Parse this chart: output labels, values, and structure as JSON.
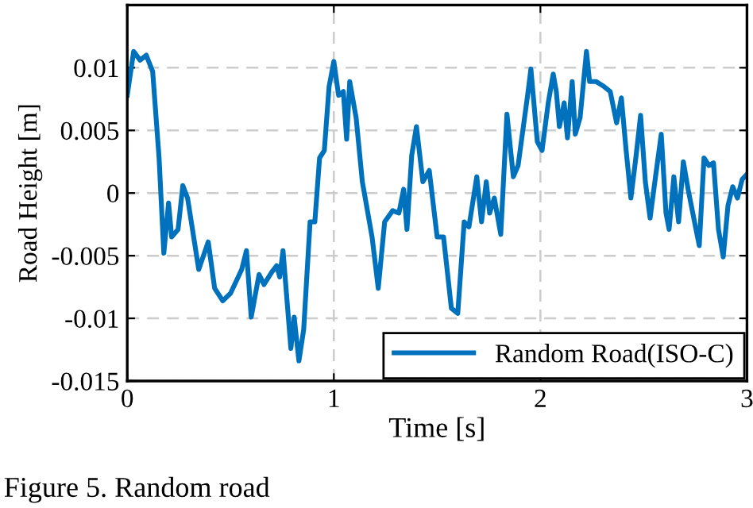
{
  "chart_data": {
    "type": "line",
    "xlabel": "Time [s]",
    "ylabel": "Road Height [m]",
    "annotations": [
      "Figure 5. Random road"
    ],
    "xlim": [
      0,
      3
    ],
    "xticks": [
      0,
      1,
      2,
      3
    ],
    "ylim": [
      -0.015,
      0.015
    ],
    "yticks": [
      {
        "value": -0.015,
        "label": "-0.015"
      },
      {
        "value": -0.01,
        "label": "-0.01"
      },
      {
        "value": -0.005,
        "label": "-0.005"
      },
      {
        "value": 0,
        "label": "0"
      },
      {
        "value": 0.005,
        "label": "0.005"
      },
      {
        "value": 0.01,
        "label": "0.01"
      }
    ],
    "grid": true,
    "legend": "bottom right",
    "line_style": "solid",
    "marker": "none",
    "series": [
      {
        "name": "Random Road(ISO-C)",
        "color": "#0072bd",
        "x": [
          0,
          0.031,
          0.062,
          0.092,
          0.123,
          0.154,
          0.177,
          0.2,
          0.215,
          0.246,
          0.269,
          0.292,
          0.346,
          0.392,
          0.423,
          0.462,
          0.5,
          0.554,
          0.577,
          0.6,
          0.638,
          0.662,
          0.7,
          0.723,
          0.738,
          0.754,
          0.792,
          0.808,
          0.831,
          0.854,
          0.885,
          0.908,
          0.931,
          0.954,
          0.977,
          1.0,
          1.023,
          1.046,
          1.062,
          1.077,
          1.108,
          1.138,
          1.185,
          1.215,
          1.246,
          1.285,
          1.315,
          1.338,
          1.354,
          1.377,
          1.4,
          1.431,
          1.462,
          1.5,
          1.531,
          1.569,
          1.6,
          1.631,
          1.654,
          1.692,
          1.715,
          1.738,
          1.754,
          1.777,
          1.808,
          1.838,
          1.869,
          1.892,
          1.938,
          1.954,
          1.985,
          2.008,
          2.038,
          2.062,
          2.077,
          2.092,
          2.115,
          2.131,
          2.154,
          2.169,
          2.192,
          2.223,
          2.238,
          2.269,
          2.308,
          2.338,
          2.369,
          2.392,
          2.415,
          2.438,
          2.462,
          2.485,
          2.508,
          2.531,
          2.554,
          2.585,
          2.608,
          2.623,
          2.646,
          2.669,
          2.692,
          2.715,
          2.746,
          2.769,
          2.792,
          2.815,
          2.838,
          2.862,
          2.885,
          2.908,
          2.931,
          2.954,
          2.977,
          3.0
        ],
        "values": [
          0.0078,
          0.0113,
          0.0106,
          0.011,
          0.0097,
          0.0028,
          -0.0048,
          -0.0008,
          -0.0035,
          -0.0029,
          0.0006,
          -0.0004,
          -0.0061,
          -0.0039,
          -0.0076,
          -0.0086,
          -0.008,
          -0.0061,
          -0.0046,
          -0.0099,
          -0.0065,
          -0.0073,
          -0.0063,
          -0.0058,
          -0.0067,
          -0.0046,
          -0.0124,
          -0.0099,
          -0.0134,
          -0.0109,
          -0.0023,
          -0.0023,
          0.0028,
          0.0034,
          0.0085,
          0.0105,
          0.0078,
          0.0081,
          0.0043,
          0.0089,
          0.006,
          0.0009,
          -0.0035,
          -0.0076,
          -0.0023,
          -0.0014,
          -0.0016,
          0.0003,
          -0.0029,
          0.003,
          0.0053,
          0.0009,
          0.0018,
          -0.0035,
          -0.0035,
          -0.0092,
          -0.0096,
          -0.0023,
          -0.0027,
          0.0013,
          -0.0023,
          0.0009,
          -0.0016,
          -0.0004,
          -0.0033,
          0.0063,
          0.0013,
          0.0022,
          0.0078,
          0.0099,
          0.0041,
          0.0034,
          0.0072,
          0.0095,
          0.0081,
          0.0053,
          0.0072,
          0.0044,
          0.0089,
          0.0047,
          0.006,
          0.0113,
          0.0089,
          0.0089,
          0.0085,
          0.0081,
          0.0056,
          0.0076,
          0.0034,
          -0.0004,
          0.0028,
          0.0062,
          0.0009,
          -0.002,
          0.0009,
          0.0047,
          -0.0016,
          -0.0029,
          0.0013,
          -0.0023,
          0.0025,
          0.0003,
          -0.0023,
          -0.0042,
          0.0028,
          0.0022,
          0.0024,
          -0.0029,
          -0.0051,
          -0.001,
          0.0005,
          -0.0004,
          0.0011,
          0.0015
        ]
      }
    ]
  }
}
